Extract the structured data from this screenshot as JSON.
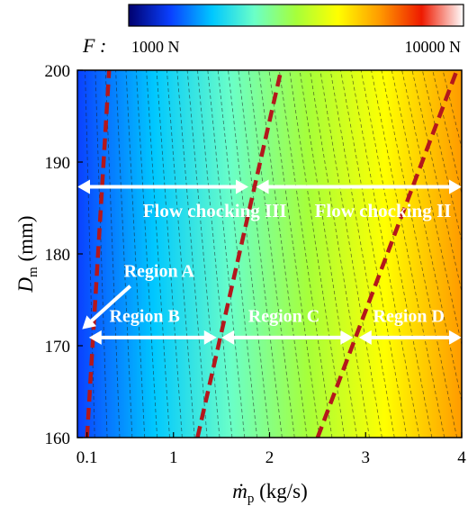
{
  "chart_data": {
    "type": "heatmap",
    "title": "",
    "xlabel_symbol": "ṁ",
    "xlabel_subscript": "p",
    "xlabel_unit": " (kg/s)",
    "ylabel_symbol": "D",
    "ylabel_subscript": "m",
    "ylabel_unit": " (mm)",
    "x_ticks": [
      {
        "value": 0.1,
        "label": "0.1"
      },
      {
        "value": 1,
        "label": "1"
      },
      {
        "value": 2,
        "label": "2"
      },
      {
        "value": 3,
        "label": "3"
      },
      {
        "value": 4,
        "label": "4"
      }
    ],
    "y_ticks": [
      {
        "value": 160,
        "label": "160"
      },
      {
        "value": 170,
        "label": "170"
      },
      {
        "value": 180,
        "label": "180"
      },
      {
        "value": 190,
        "label": "190"
      },
      {
        "value": 200,
        "label": "200"
      }
    ],
    "xlim": [
      0,
      4
    ],
    "ylim": [
      160,
      200
    ],
    "colorbar": {
      "variable": "F :",
      "min_label": "1000 N",
      "max_label": "10000 N",
      "colors": [
        "#00006e",
        "#0a40ff",
        "#00c8ff",
        "#6affc8",
        "#a6ff3a",
        "#ffff00",
        "#ff9a00",
        "#ee1a00",
        "#ffffff"
      ]
    },
    "boundaries": [
      {
        "name": "boundary-1",
        "points": [
          [
            0.1,
            160
          ],
          [
            0.33,
            200
          ]
        ],
        "color": "#b4171c"
      },
      {
        "name": "boundary-2",
        "points": [
          [
            1.25,
            160
          ],
          [
            2.12,
            200
          ]
        ],
        "color": "#b4171c"
      },
      {
        "name": "boundary-3",
        "points": [
          [
            2.5,
            160
          ],
          [
            3.95,
            200
          ]
        ],
        "color": "#b4171c"
      }
    ],
    "annotations": [
      {
        "text": "Flow chocking III",
        "x": 1.43,
        "y": 184.0,
        "size": "big"
      },
      {
        "text": "Flow chocking II",
        "x": 3.18,
        "y": 184.0,
        "size": "big"
      },
      {
        "text": "Region A",
        "x": 0.85,
        "y": 177.5,
        "size": "normal"
      },
      {
        "text": "Region B",
        "x": 0.7,
        "y": 172.6,
        "size": "normal"
      },
      {
        "text": "Region C",
        "x": 2.15,
        "y": 172.6,
        "size": "normal"
      },
      {
        "text": "Region D",
        "x": 3.45,
        "y": 172.6,
        "size": "normal"
      }
    ],
    "arrows": [
      {
        "name": "flow-chocking-iii-range",
        "from": [
          0.0,
          187.3
        ],
        "to": [
          1.78,
          187.3
        ],
        "double": true
      },
      {
        "name": "flow-chocking-ii-range",
        "from": [
          1.86,
          187.3
        ],
        "to": [
          4.0,
          187.3
        ],
        "double": true
      },
      {
        "name": "region-b-range",
        "from": [
          0.12,
          170.9
        ],
        "to": [
          1.45,
          170.9
        ],
        "double": true
      },
      {
        "name": "region-c-range",
        "from": [
          1.5,
          170.9
        ],
        "to": [
          2.87,
          170.9
        ],
        "double": true
      },
      {
        "name": "region-d-range",
        "from": [
          2.93,
          170.9
        ],
        "to": [
          4.0,
          170.9
        ],
        "double": true
      },
      {
        "name": "region-a-pointer",
        "from": [
          0.55,
          176.5
        ],
        "to": [
          0.05,
          171.8
        ],
        "double": false
      }
    ]
  }
}
